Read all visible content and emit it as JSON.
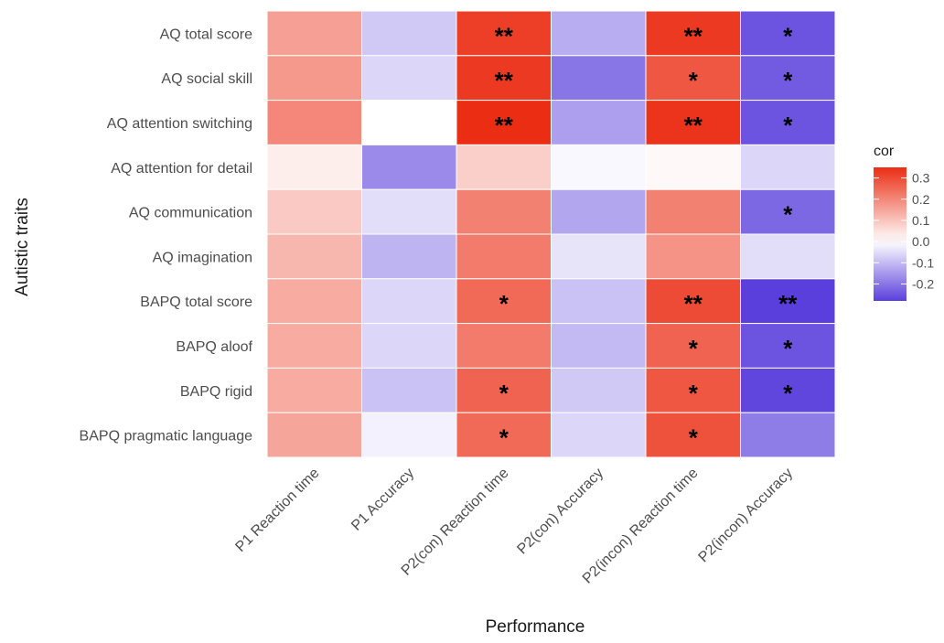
{
  "chart_data": {
    "type": "heatmap",
    "title": "",
    "xlabel": "Performance",
    "ylabel": "Autistic traits",
    "x_categories": [
      "P1 Reaction time",
      "P1 Accuracy",
      "P2(con) Reaction time",
      "P2(con) Accuracy",
      "P2(incon) Reaction time",
      "P2(incon) Accuracy"
    ],
    "y_categories": [
      "AQ total score",
      "AQ social skill",
      "AQ attention switching",
      "AQ attention for detail",
      "AQ communication",
      "AQ imagination",
      "BAPQ total score",
      "BAPQ aloof",
      "BAPQ rigid",
      "BAPQ pragmatic language"
    ],
    "values": [
      [
        0.16,
        -0.08,
        0.32,
        -0.12,
        0.33,
        -0.25
      ],
      [
        0.17,
        -0.06,
        0.33,
        -0.2,
        0.28,
        -0.24
      ],
      [
        0.2,
        0.0,
        0.35,
        -0.14,
        0.34,
        -0.25
      ],
      [
        0.03,
        -0.17,
        0.08,
        -0.01,
        0.01,
        -0.06
      ],
      [
        0.09,
        -0.05,
        0.21,
        -0.13,
        0.21,
        -0.22
      ],
      [
        0.12,
        -0.11,
        0.22,
        -0.04,
        0.18,
        -0.05
      ],
      [
        0.14,
        -0.06,
        0.25,
        -0.09,
        0.3,
        -0.28
      ],
      [
        0.14,
        -0.06,
        0.22,
        -0.1,
        0.26,
        -0.25
      ],
      [
        0.14,
        -0.09,
        0.26,
        -0.08,
        0.28,
        -0.27
      ],
      [
        0.15,
        -0.02,
        0.25,
        -0.06,
        0.29,
        -0.19
      ]
    ],
    "significance": [
      [
        "",
        "",
        "**",
        "",
        "**",
        "*"
      ],
      [
        "",
        "",
        "**",
        "",
        "*",
        "*"
      ],
      [
        "",
        "",
        "**",
        "",
        "**",
        "*"
      ],
      [
        "",
        "",
        "",
        "",
        "",
        ""
      ],
      [
        "",
        "",
        "",
        "",
        "",
        "*"
      ],
      [
        "",
        "",
        "",
        "",
        "",
        ""
      ],
      [
        "",
        "",
        "*",
        "",
        "**",
        "**"
      ],
      [
        "",
        "",
        "",
        "",
        "*",
        "*"
      ],
      [
        "",
        "",
        "*",
        "",
        "*",
        "*"
      ],
      [
        "",
        "",
        "*",
        "",
        "*",
        ""
      ]
    ],
    "legend": {
      "title": "cor",
      "position": "right",
      "ticks": [
        0.3,
        0.2,
        0.1,
        0.0,
        -0.1,
        -0.2
      ],
      "tick_labels": [
        "0.3",
        "0.2",
        "0.1",
        "0.0",
        "-0.1",
        "-0.2"
      ],
      "range": [
        -0.28,
        0.35
      ]
    },
    "colors": {
      "low": "#5a3fdc",
      "mid": "#ffffff",
      "high": "#eb2d14",
      "panel_background": "#ebebeb",
      "grid": "#ffffff"
    },
    "grid": true
  }
}
